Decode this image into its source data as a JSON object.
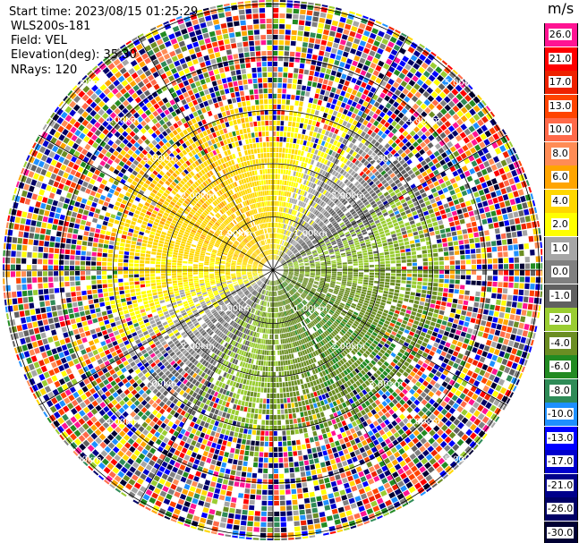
{
  "header": {
    "start_time": "Start time: 2023/08/15 01:25:29",
    "instrument": "WLS200s-181",
    "field": "Field: VEL",
    "elevation": "Elevation(deg): 35.30",
    "nrays": "NRays: 120"
  },
  "chart_data": {
    "type": "heatmap",
    "subtype": "polar PPI scan",
    "field": "VEL",
    "units": "m/s",
    "elevation_deg": 35.3,
    "n_rays": 120,
    "range_rings_km": [
      1.0,
      2.0,
      3.0,
      4.0,
      5.0
    ],
    "range_ring_labels": [
      "1.00km",
      "2.00km",
      "3.00km",
      "4.00km",
      "5.00km"
    ],
    "spokes": 6,
    "colorbar": {
      "title": "m/s",
      "ticks": [
        "26.0",
        "21.0",
        "17.0",
        "13.0",
        "10.0",
        "8.0",
        "6.0",
        "4.0",
        "2.0",
        "1.0",
        "0.0",
        "-1.0",
        "-2.0",
        "-4.0",
        "-6.0",
        "-8.0",
        "-10.0",
        "-13.0",
        "-17.0",
        "-21.0",
        "-26.0",
        "-30.0"
      ],
      "colors": [
        "#ff1493",
        "#ff0000",
        "#ee2200",
        "#ff4400",
        "#ff6a4a",
        "#ff8c55",
        "#ffa500",
        "#ffd700",
        "#ffff00",
        "#a6a6a6",
        "#808080",
        "#606060",
        "#9acd32",
        "#6b8e23",
        "#228b22",
        "#2e8b57",
        "#1e90ff",
        "#0000ff",
        "#0000cd",
        "#00008b",
        "#000066",
        "#000033"
      ],
      "vmin": -30.0,
      "vmax": 26.0
    },
    "near_range_pattern": {
      "north_west_sector": "positive (yellow/orange, 2 to 6 m/s)",
      "south_east_sector": "negative (green, -2 to -6 m/s)",
      "north_east_and_south_west_bands": "near zero (gray)",
      "beyond_about_3.2km": "noisy / unfiltered (all colors)"
    }
  }
}
